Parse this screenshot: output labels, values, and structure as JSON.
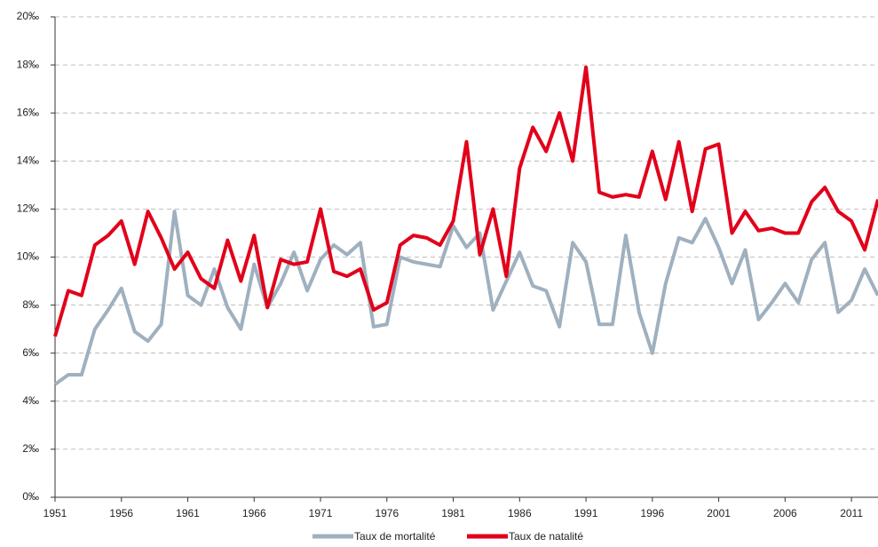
{
  "chart_data": {
    "type": "line",
    "x": [
      1951,
      1952,
      1953,
      1954,
      1955,
      1956,
      1957,
      1958,
      1959,
      1960,
      1961,
      1962,
      1963,
      1964,
      1965,
      1966,
      1967,
      1968,
      1969,
      1970,
      1971,
      1972,
      1973,
      1974,
      1975,
      1976,
      1977,
      1978,
      1979,
      1980,
      1981,
      1982,
      1983,
      1984,
      1985,
      1986,
      1987,
      1988,
      1989,
      1990,
      1991,
      1992,
      1993,
      1994,
      1995,
      1996,
      1997,
      1998,
      1999,
      2000,
      2001,
      2002,
      2003,
      2004,
      2005,
      2006,
      2007,
      2008,
      2009,
      2010,
      2011,
      2012,
      2013
    ],
    "series": [
      {
        "name": "Taux de mortalité",
        "color": "#9fb0bf",
        "values": [
          4.7,
          5.1,
          5.1,
          7.0,
          7.8,
          8.7,
          6.9,
          6.5,
          7.2,
          11.9,
          8.4,
          8.0,
          9.5,
          7.9,
          7.0,
          9.7,
          7.9,
          8.9,
          10.2,
          8.6,
          9.9,
          10.5,
          10.1,
          10.6,
          7.1,
          7.2,
          10.0,
          9.8,
          9.7,
          9.6,
          11.3,
          10.4,
          11.0,
          7.8,
          9.0,
          10.2,
          8.8,
          8.6,
          7.1,
          10.6,
          9.8,
          7.2,
          7.2,
          10.9,
          7.7,
          6.0,
          8.9,
          10.8,
          10.6,
          11.6,
          10.4,
          8.9,
          10.3,
          7.4,
          8.1,
          8.9,
          8.1,
          9.9,
          10.6,
          7.7,
          8.2,
          9.5,
          8.4
        ]
      },
      {
        "name": "Taux de natalité",
        "color": "#e2001a",
        "values": [
          6.7,
          8.6,
          8.4,
          10.5,
          10.9,
          11.5,
          9.7,
          11.9,
          10.8,
          9.5,
          10.2,
          9.1,
          8.7,
          10.7,
          9.0,
          10.9,
          7.9,
          9.9,
          9.7,
          9.8,
          12.0,
          9.4,
          9.2,
          9.5,
          7.8,
          8.1,
          10.5,
          10.9,
          10.8,
          10.5,
          11.5,
          14.8,
          10.1,
          12.0,
          9.2,
          13.7,
          15.4,
          14.4,
          16.0,
          14.0,
          17.9,
          12.7,
          12.5,
          12.6,
          12.5,
          14.4,
          12.4,
          14.8,
          11.9,
          14.5,
          14.7,
          11.0,
          11.9,
          11.1,
          11.2,
          11.0,
          11.0,
          12.3,
          12.9,
          11.9,
          11.5,
          10.3,
          12.4
        ]
      }
    ],
    "xlim": [
      1951,
      2013
    ],
    "xticks": [
      1951,
      1956,
      1961,
      1966,
      1971,
      1976,
      1981,
      1986,
      1991,
      1996,
      2001,
      2006,
      2011
    ],
    "ylim": [
      0,
      20
    ],
    "yticks": [
      {
        "value": 0,
        "label": "0‰"
      },
      {
        "value": 2,
        "label": "2‰"
      },
      {
        "value": 4,
        "label": "4‰"
      },
      {
        "value": 6,
        "label": "6‰"
      },
      {
        "value": 8,
        "label": "8‰"
      },
      {
        "value": 10,
        "label": "10‰"
      },
      {
        "value": 12,
        "label": "12‰"
      },
      {
        "value": 14,
        "label": "14‰"
      },
      {
        "value": 16,
        "label": "16‰"
      },
      {
        "value": 18,
        "label": "18‰"
      },
      {
        "value": 20,
        "label": "20‰"
      }
    ],
    "grid": true,
    "legend": "bottom"
  }
}
